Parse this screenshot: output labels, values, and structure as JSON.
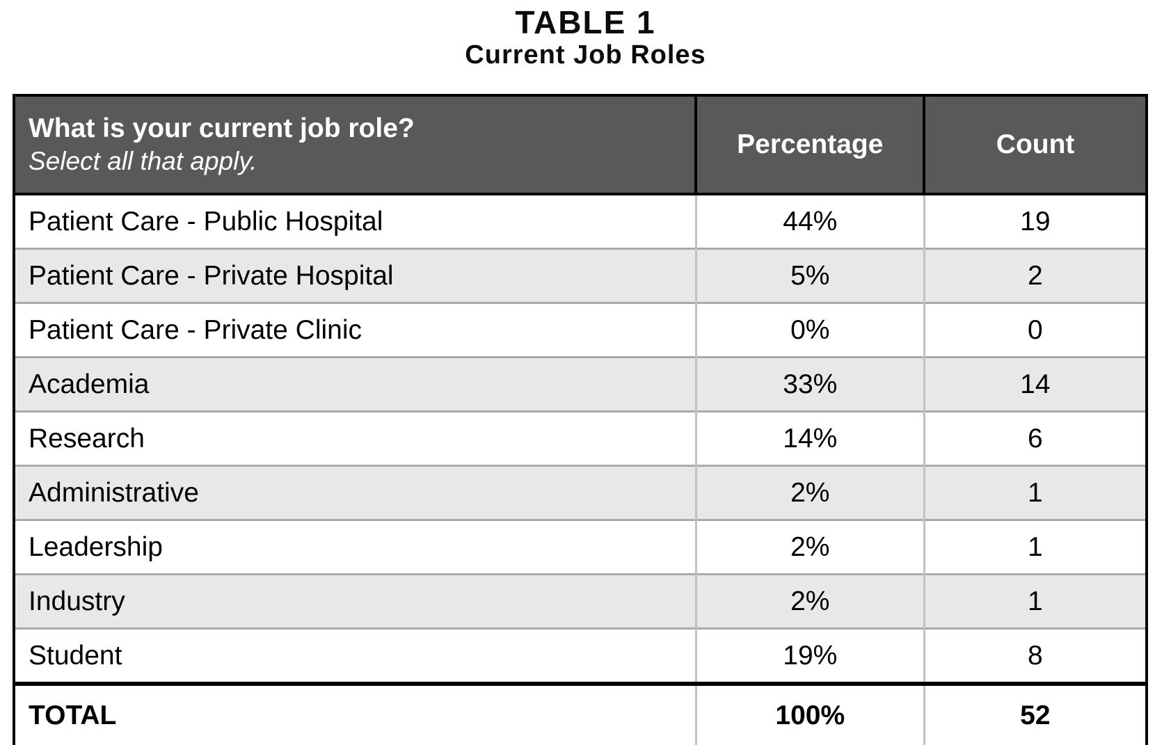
{
  "title": "TABLE 1",
  "subtitle": "Current Job Roles",
  "table": {
    "header": {
      "question": "What is your current job role?",
      "instruction": "Select all that apply.",
      "percentage_label": "Percentage",
      "count_label": "Count"
    },
    "rows": [
      {
        "label": "Patient Care - Public Hospital",
        "percentage": "44%",
        "count": "19"
      },
      {
        "label": "Patient Care - Private Hospital",
        "percentage": "5%",
        "count": "2"
      },
      {
        "label": "Patient Care - Private Clinic",
        "percentage": "0%",
        "count": "0"
      },
      {
        "label": "Academia",
        "percentage": "33%",
        "count": "14"
      },
      {
        "label": "Research",
        "percentage": "14%",
        "count": "6"
      },
      {
        "label": "Administrative",
        "percentage": "2%",
        "count": "1"
      },
      {
        "label": "Leadership",
        "percentage": "2%",
        "count": "1"
      },
      {
        "label": "Industry",
        "percentage": "2%",
        "count": "1"
      },
      {
        "label": "Student",
        "percentage": "19%",
        "count": "8"
      }
    ],
    "total": {
      "label": "TOTAL",
      "percentage": "100%",
      "count": "52"
    }
  },
  "colors": {
    "header_bg": "#58595b",
    "header_text": "#ffffff",
    "stripe_bg": "#e8e8ea",
    "row_separator": "#a7a9ac",
    "column_divider": "#bfc1c3",
    "border": "#000000"
  },
  "chart_data": {
    "type": "table",
    "title": "TABLE 1",
    "subtitle": "Current Job Roles",
    "question": "What is your current job role? Select all that apply.",
    "columns": [
      "Job Role",
      "Percentage",
      "Count"
    ],
    "categories": [
      "Patient Care - Public Hospital",
      "Patient Care - Private Hospital",
      "Patient Care - Private Clinic",
      "Academia",
      "Research",
      "Administrative",
      "Leadership",
      "Industry",
      "Student"
    ],
    "series": [
      {
        "name": "Percentage",
        "values": [
          44,
          5,
          0,
          33,
          14,
          2,
          2,
          2,
          19
        ]
      },
      {
        "name": "Count",
        "values": [
          19,
          2,
          0,
          14,
          6,
          1,
          1,
          1,
          8
        ]
      }
    ],
    "total": {
      "percentage": 100,
      "count": 52
    },
    "layout": {
      "zebra_striping": true,
      "header_style": "dark-gray",
      "total_row": true
    }
  }
}
